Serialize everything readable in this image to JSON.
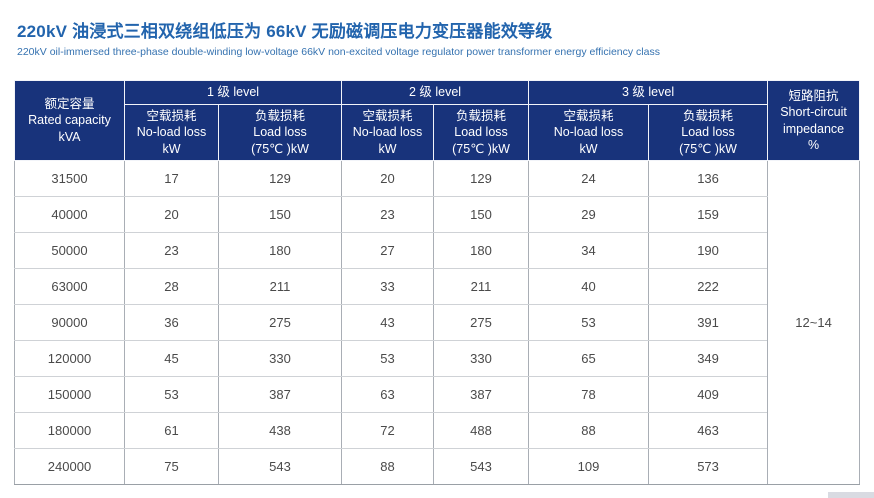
{
  "page": {
    "title": "220kV 油浸式三相双绕组低压为 66kV 无励磁调压电力变压器能效等级",
    "subtitle": "220kV oil-immersed three-phase double-winding low-voltage 66kV non-excited voltage regulator power transformer energy efficiency class"
  },
  "colors": {
    "header_bg": "#18337B",
    "title_text": "#2264AD",
    "subtitle_text": "#3572B0",
    "body_text": "#4A4A4A",
    "grid_vertical": "#A9AEB5",
    "grid_horizontal": "#CFD2D6"
  },
  "table": {
    "capacity_header": {
      "zh": "额定容量",
      "en": "Rated capacity",
      "unit": "kVA"
    },
    "level_headers": [
      "1 级 level",
      "2 级 level",
      "3 级 level"
    ],
    "no_load_header": {
      "zh": "空载损耗",
      "en": "No-load loss",
      "unit": "kW"
    },
    "load_header": {
      "zh": "负载损耗",
      "en": "Load loss",
      "unit": "(75℃ )kW"
    },
    "impedance_header": {
      "zh": "短路阻抗",
      "en": "Short-circuit impedance",
      "unit": "%"
    },
    "impedance_value": "12~14",
    "rows": [
      {
        "capacity": "31500",
        "values": [
          "17",
          "129",
          "20",
          "129",
          "24",
          "136"
        ]
      },
      {
        "capacity": "40000",
        "values": [
          "20",
          "150",
          "23",
          "150",
          "29",
          "159"
        ]
      },
      {
        "capacity": "50000",
        "values": [
          "23",
          "180",
          "27",
          "180",
          "34",
          "190"
        ]
      },
      {
        "capacity": "63000",
        "values": [
          "28",
          "211",
          "33",
          "211",
          "40",
          "222"
        ]
      },
      {
        "capacity": "90000",
        "values": [
          "36",
          "275",
          "43",
          "275",
          "53",
          "391"
        ]
      },
      {
        "capacity": "120000",
        "values": [
          "45",
          "330",
          "53",
          "330",
          "65",
          "349"
        ]
      },
      {
        "capacity": "150000",
        "values": [
          "53",
          "387",
          "63",
          "387",
          "78",
          "409"
        ]
      },
      {
        "capacity": "180000",
        "values": [
          "61",
          "438",
          "72",
          "488",
          "88",
          "463"
        ]
      },
      {
        "capacity": "240000",
        "values": [
          "75",
          "543",
          "88",
          "543",
          "109",
          "573"
        ]
      }
    ]
  }
}
